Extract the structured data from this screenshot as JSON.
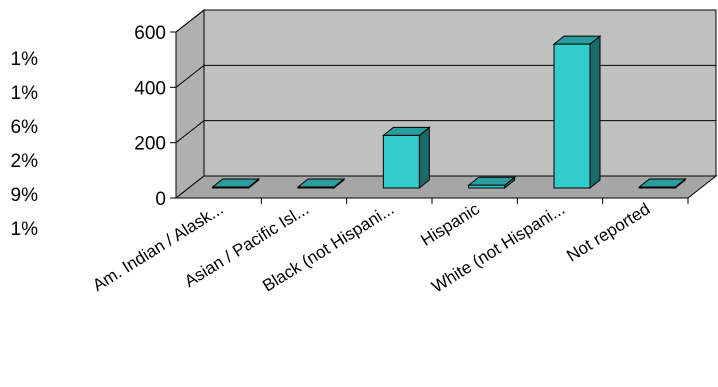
{
  "legend_percentages": [
    "1%",
    "1%",
    "6%",
    "2%",
    "9%",
    "1%"
  ],
  "chart_data": {
    "type": "bar",
    "style": "3d-column",
    "title": "",
    "xlabel": "",
    "ylabel": "",
    "categories": [
      "Am. Indian / Alask...",
      "Asian / Pacific Isl...",
      "Black (not Hispani...",
      "Hispanic",
      "White (not Hispani...",
      "Not reported"
    ],
    "values": [
      3,
      3,
      190,
      10,
      520,
      3
    ],
    "ylim": [
      0,
      600
    ],
    "yticks": [
      "0",
      "200",
      "400",
      "600"
    ],
    "ytick_values": [
      0,
      200,
      400,
      600
    ],
    "grid": true,
    "colors": {
      "bar_front": "#33CCCC",
      "bar_side": "#1B6B6B",
      "bar_top": "#2A9E9E",
      "wall": "#C0C0C0",
      "floor": "#A6A6A6",
      "grid": "#000000"
    }
  }
}
